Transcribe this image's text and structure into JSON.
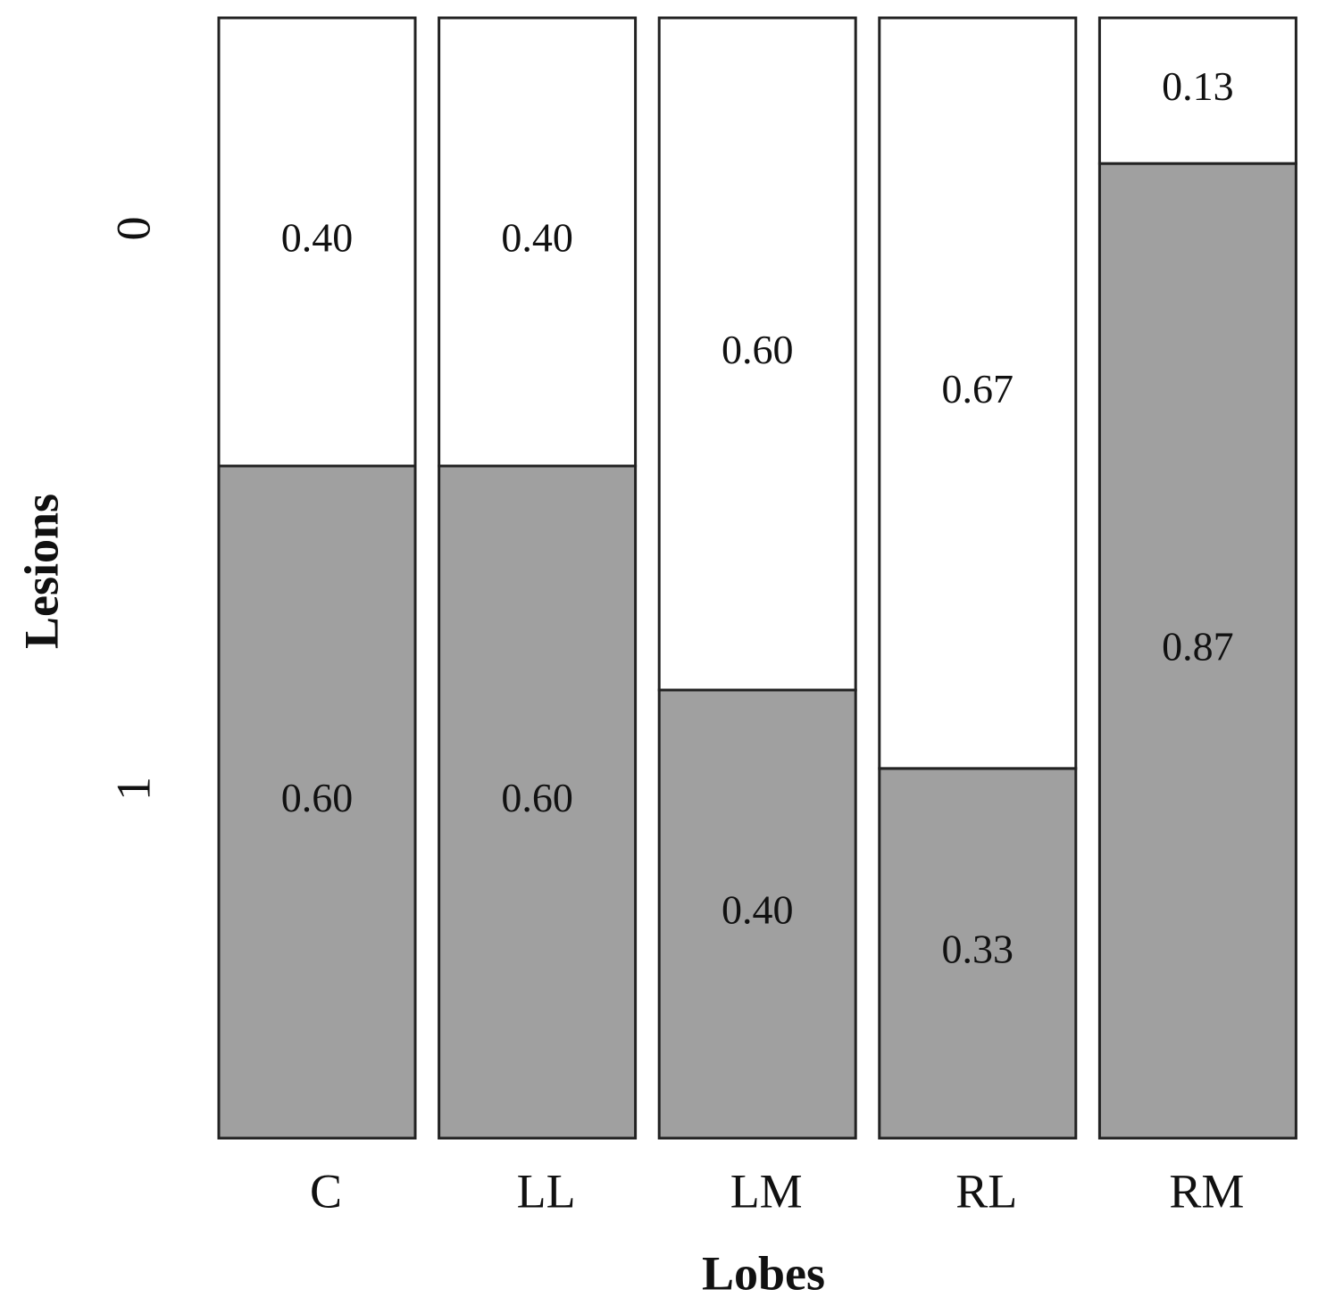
{
  "chart_data": {
    "type": "bar",
    "stacked": true,
    "x_label": "Lobes",
    "y_label": "Lesions",
    "categories": [
      "C",
      "LL",
      "LM",
      "RL",
      "RM"
    ],
    "ylim": [
      0,
      1
    ],
    "series": [
      {
        "name": "1",
        "color": "#a0a0a0",
        "values": [
          0.6,
          0.6,
          0.4,
          0.33,
          0.87
        ],
        "value_labels": [
          "0.60",
          "0.60",
          "0.40",
          "0.33",
          "0.87"
        ]
      },
      {
        "name": "0",
        "color": "#ffffff",
        "values": [
          0.4,
          0.4,
          0.6,
          0.67,
          0.13
        ],
        "value_labels": [
          "0.40",
          "0.40",
          "0.60",
          "0.67",
          "0.13"
        ]
      }
    ]
  }
}
